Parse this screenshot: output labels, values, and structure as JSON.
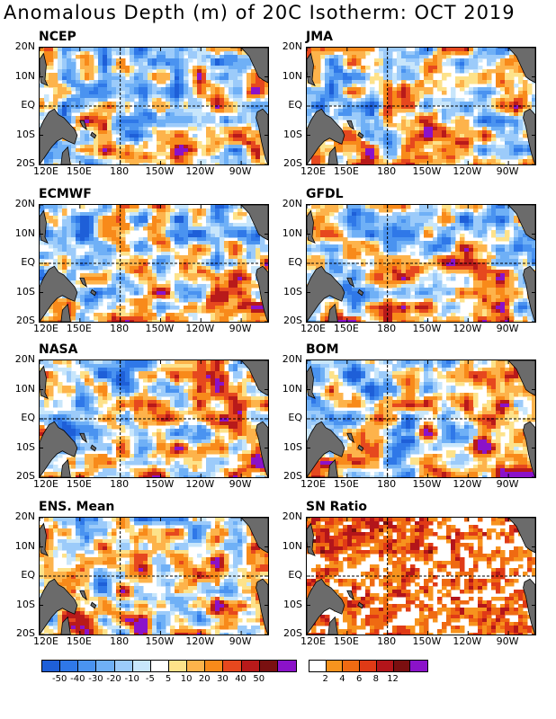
{
  "title": "Anomalous Depth (m) of 20C Isotherm: OCT 2019",
  "chart_data": {
    "type": "heatmap",
    "variable": "Anomalous depth (m) of 20C isotherm",
    "month": "OCT 2019",
    "x_ticks": [
      "120E",
      "150E",
      "180",
      "150W",
      "120W",
      "90W"
    ],
    "y_ticks": [
      "20N",
      "10N",
      "EQ",
      "10S",
      "20S"
    ],
    "panels": [
      {
        "name": "NCEP"
      },
      {
        "name": "JMA"
      },
      {
        "name": "ECMWF"
      },
      {
        "name": "GFDL"
      },
      {
        "name": "NASA"
      },
      {
        "name": "BOM"
      },
      {
        "name": "ENS. Mean"
      },
      {
        "name": "SN Ratio"
      }
    ],
    "anomaly_scale": {
      "labels": [
        "-50",
        "-40",
        "-30",
        "-20",
        "-10",
        "-5",
        "5",
        "10",
        "20",
        "30",
        "40",
        "50"
      ],
      "colors": [
        "#1e5fd8",
        "#2f78e8",
        "#4a93f0",
        "#6fb0f6",
        "#9ccbfa",
        "#c8e6fb",
        "#ffffff",
        "#fde28a",
        "#fdb34b",
        "#f88a1a",
        "#e6481e",
        "#b81a1a",
        "#7a1010",
        "#8b12c9"
      ]
    },
    "sn_scale": {
      "labels": [
        "2",
        "4",
        "6",
        "8",
        "12"
      ],
      "colors": [
        "#ffffff",
        "#f7931e",
        "#ef6a12",
        "#e03a16",
        "#b3151a",
        "#7b0f10",
        "#8b12c9"
      ]
    },
    "land_color": "#6b6b6b"
  }
}
